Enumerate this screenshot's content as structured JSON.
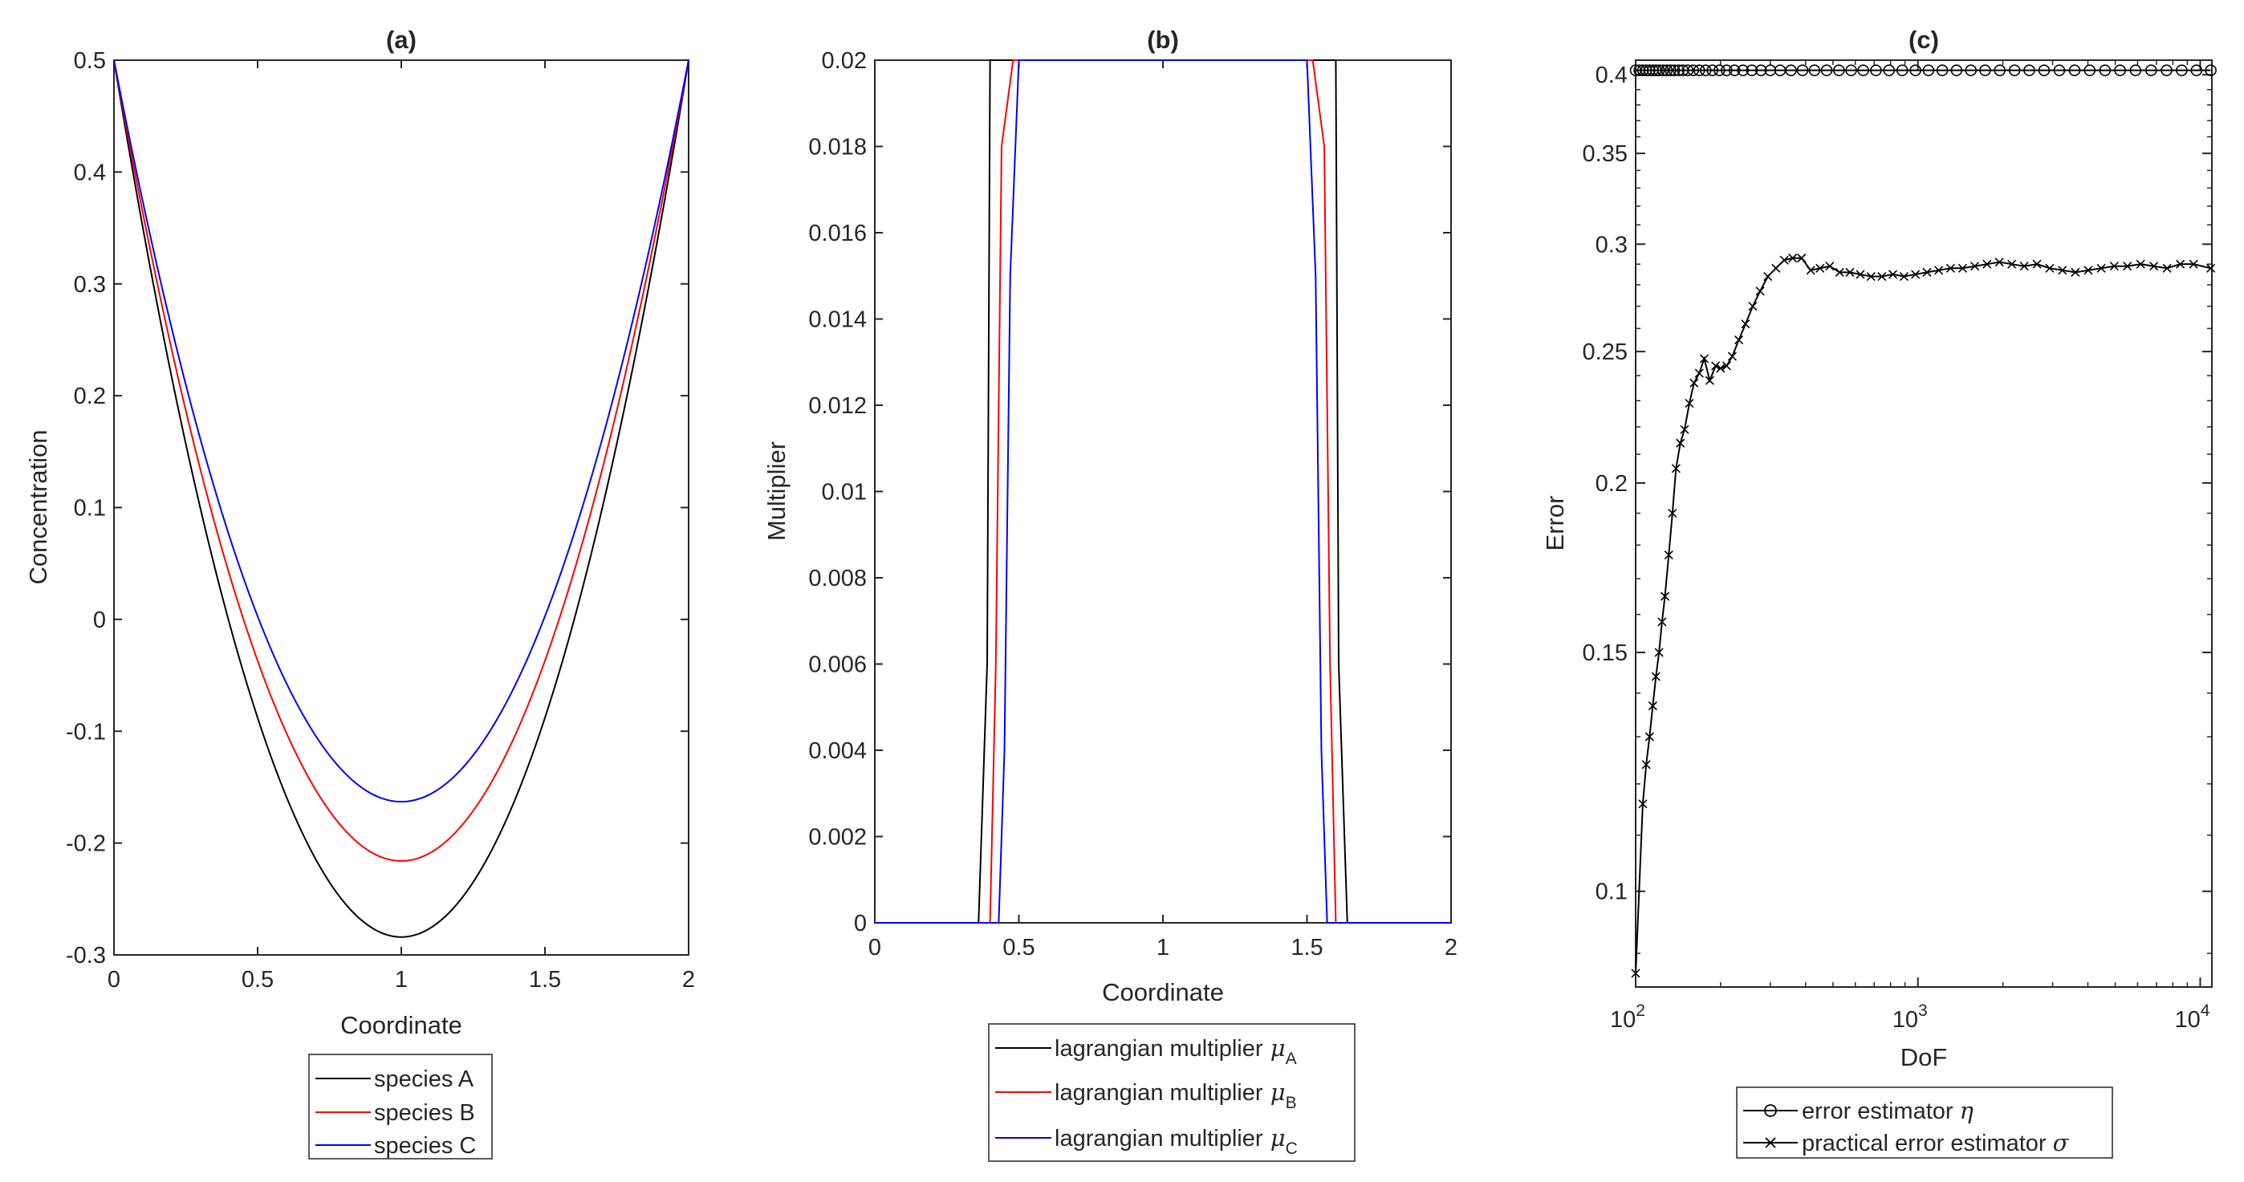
{
  "figure": "three-panel chart",
  "chart_data": [
    {
      "type": "line",
      "title": "(a)",
      "xlabel": "Coordinate",
      "ylabel": "Concentration",
      "xlim": [
        0,
        2
      ],
      "ylim": [
        -0.3,
        0.5
      ],
      "xticks": [
        0,
        0.5,
        1,
        1.5,
        2
      ],
      "xtick_labels": [
        "0",
        "0.5",
        "1",
        "1.5",
        "2"
      ],
      "yticks": [
        -0.3,
        -0.2,
        -0.1,
        0,
        0.1,
        0.2,
        0.3,
        0.4,
        0.5
      ],
      "ytick_labels": [
        "-0.3",
        "-0.2",
        "-0.1",
        "0",
        "0.1",
        "0.2",
        "0.3",
        "0.4",
        "0.5"
      ],
      "legend_position": "below",
      "series": [
        {
          "name": "species A",
          "color": "#000000",
          "x": [
            0,
            1,
            2
          ],
          "y": [
            0.5,
            -0.284,
            0.5
          ],
          "shape": "parabola"
        },
        {
          "name": "species B",
          "color": "#ff0000",
          "x": [
            0,
            1,
            2
          ],
          "y": [
            0.5,
            -0.216,
            0.5
          ],
          "shape": "parabola"
        },
        {
          "name": "species C",
          "color": "#0000ff",
          "x": [
            0,
            1,
            2
          ],
          "y": [
            0.5,
            -0.163,
            0.5
          ],
          "shape": "parabola"
        }
      ]
    },
    {
      "type": "line",
      "title": "(b)",
      "xlabel": "Coordinate",
      "ylabel": "Multiplier",
      "xlim": [
        0,
        2
      ],
      "ylim": [
        0,
        0.02
      ],
      "xticks": [
        0,
        0.5,
        1,
        1.5,
        2
      ],
      "xtick_labels": [
        "0",
        "0.5",
        "1",
        "1.5",
        "2"
      ],
      "yticks": [
        0,
        0.002,
        0.004,
        0.006,
        0.008,
        0.01,
        0.012,
        0.014,
        0.016,
        0.018,
        0.02
      ],
      "ytick_labels": [
        "0",
        "0.002",
        "0.004",
        "0.006",
        "0.008",
        "0.01",
        "0.012",
        "0.014",
        "0.016",
        "0.018",
        "0.02"
      ],
      "legend_position": "below",
      "series": [
        {
          "name": "lagrangian multiplier",
          "subscript": "A",
          "color": "#000000",
          "x": [
            0,
            0.36,
            0.39,
            0.4,
            1.6,
            1.61,
            1.64,
            2
          ],
          "y": [
            0,
            0,
            0.006,
            0.02,
            0.02,
            0.006,
            0,
            0
          ]
        },
        {
          "name": "lagrangian multiplier",
          "subscript": "B",
          "color": "#ff0000",
          "x": [
            0,
            0.4,
            0.42,
            0.44,
            0.48,
            1.52,
            1.56,
            1.58,
            1.6,
            2
          ],
          "y": [
            0,
            0,
            0.006,
            0.018,
            0.02,
            0.02,
            0.018,
            0.006,
            0,
            0
          ]
        },
        {
          "name": "lagrangian multiplier",
          "subscript": "C",
          "color": "#0000ff",
          "x": [
            0,
            0.43,
            0.45,
            0.47,
            0.5,
            1.5,
            1.53,
            1.55,
            1.57,
            2
          ],
          "y": [
            0,
            0,
            0.004,
            0.015,
            0.02,
            0.02,
            0.015,
            0.004,
            0,
            0
          ]
        }
      ]
    },
    {
      "type": "line",
      "title": "(c)",
      "xlabel": "DoF",
      "ylabel": "Error",
      "xscale": "log",
      "yscale": "log",
      "xlim": [
        100,
        11000
      ],
      "ylim": [
        0.085,
        0.41
      ],
      "yticks": [
        0.1,
        0.15,
        0.2,
        0.25,
        0.3,
        0.35,
        0.4
      ],
      "ytick_labels": [
        "0.1",
        "0.15",
        "0.2",
        "0.25",
        "0.3",
        "0.35",
        "0.4"
      ],
      "xticks": [
        100,
        1000,
        10000
      ],
      "xtick_labels": [
        {
          "base": "10",
          "exp": "2"
        },
        {
          "base": "10",
          "exp": "3"
        },
        {
          "base": "10",
          "exp": "4"
        }
      ],
      "legend_position": "below",
      "series": [
        {
          "name": "error estimator",
          "symbol": "η",
          "color": "#000000",
          "marker": "o",
          "x": [
            100,
            103,
            106,
            109,
            112,
            115,
            118,
            121,
            125,
            129,
            133,
            137,
            142,
            147,
            153,
            160,
            168,
            177,
            187,
            198,
            210,
            224,
            240,
            258,
            278,
            300,
            325,
            355,
            390,
            430,
            475,
            525,
            580,
            640,
            710,
            790,
            880,
            980,
            1090,
            1220,
            1370,
            1540,
            1730,
            1950,
            2200,
            2480,
            2800,
            3170,
            3590,
            4060,
            4600,
            5200,
            5900,
            6700,
            7600,
            8600,
            9700,
            10900
          ],
          "y": [
            0.403,
            0.403,
            0.403,
            0.403,
            0.403,
            0.403,
            0.403,
            0.403,
            0.403,
            0.403,
            0.403,
            0.403,
            0.403,
            0.403,
            0.403,
            0.403,
            0.403,
            0.403,
            0.403,
            0.403,
            0.403,
            0.403,
            0.403,
            0.403,
            0.403,
            0.403,
            0.403,
            0.403,
            0.403,
            0.403,
            0.403,
            0.403,
            0.403,
            0.403,
            0.403,
            0.403,
            0.403,
            0.403,
            0.403,
            0.403,
            0.403,
            0.403,
            0.403,
            0.403,
            0.403,
            0.403,
            0.403,
            0.403,
            0.403,
            0.403,
            0.403,
            0.403,
            0.403,
            0.403,
            0.403,
            0.403,
            0.403,
            0.403
          ]
        },
        {
          "name": "practical error estimator",
          "symbol": "σ",
          "color": "#000000",
          "marker": "x",
          "x": [
            100,
            106,
            109,
            112,
            115,
            118,
            121,
            124,
            127,
            131,
            135,
            139,
            144,
            149,
            155,
            161,
            168,
            175,
            183,
            192,
            200,
            210,
            220,
            232,
            245,
            260,
            276,
            294,
            314,
            336,
            360,
            387,
            417,
            450,
            487,
            528,
            574,
            625,
            682,
            745,
            815,
            893,
            980,
            1077,
            1185,
            1305,
            1440,
            1590,
            1757,
            1943,
            2150,
            2380,
            2640,
            2930,
            3250,
            3610,
            4010,
            4460,
            4960,
            5520,
            6150,
            6850,
            7630,
            8500,
            9470,
            10900
          ],
          "y": [
            0.087,
            0.116,
            0.124,
            0.13,
            0.137,
            0.144,
            0.15,
            0.158,
            0.165,
            0.177,
            0.19,
            0.205,
            0.214,
            0.219,
            0.229,
            0.237,
            0.241,
            0.247,
            0.238,
            0.244,
            0.243,
            0.244,
            0.248,
            0.255,
            0.262,
            0.27,
            0.277,
            0.284,
            0.288,
            0.292,
            0.293,
            0.293,
            0.287,
            0.288,
            0.289,
            0.286,
            0.286,
            0.285,
            0.284,
            0.284,
            0.285,
            0.284,
            0.285,
            0.286,
            0.287,
            0.288,
            0.288,
            0.289,
            0.29,
            0.291,
            0.29,
            0.289,
            0.29,
            0.288,
            0.287,
            0.286,
            0.287,
            0.288,
            0.289,
            0.289,
            0.29,
            0.289,
            0.288,
            0.29,
            0.29,
            0.288
          ]
        }
      ]
    }
  ]
}
